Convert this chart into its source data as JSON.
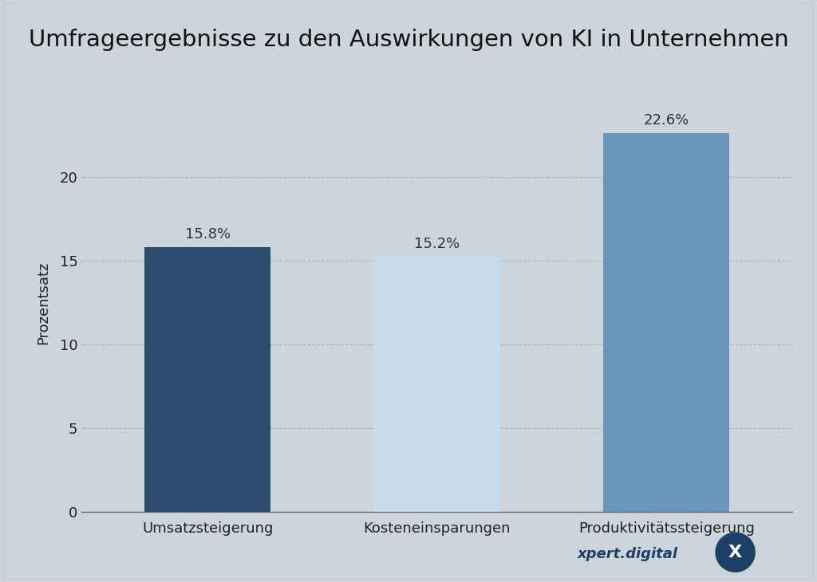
{
  "title": "Umfrageergebnisse zu den Auswirkungen von KI in Unternehmen",
  "categories": [
    "Umsatzsteigerung",
    "Kosteneinsparungen",
    "Produktivitätssteigerung"
  ],
  "values": [
    15.8,
    15.2,
    22.6
  ],
  "bar_colors": [
    "#1e3f66",
    "#c5ddef",
    "#5a8db5"
  ],
  "bar_alpha": [
    0.92,
    0.85,
    0.88
  ],
  "ylabel": "Prozentsatz",
  "ylim": [
    0,
    25
  ],
  "yticks": [
    0,
    5,
    10,
    15,
    20
  ],
  "grid_color": "#aaaaaa",
  "bg_color": "#cdd5dc",
  "plot_bg": "#f0f2f4",
  "title_fontsize": 21,
  "label_fontsize": 13,
  "tick_fontsize": 13,
  "value_fontsize": 13,
  "watermark_text": "xpert.digital",
  "watermark_color": "#1e3f66",
  "bar_width": 0.55,
  "border_color": "#cccccc"
}
